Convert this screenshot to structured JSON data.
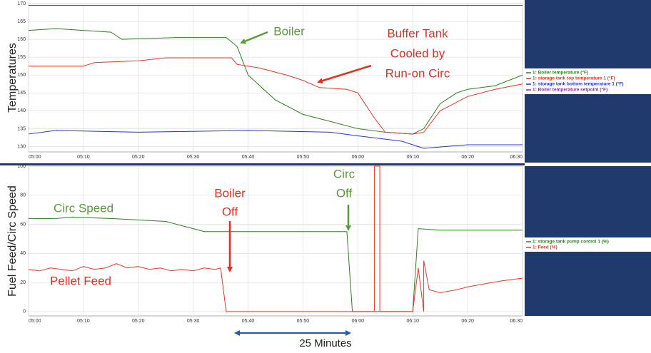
{
  "chart_data": [
    {
      "type": "line",
      "y_label": "Temperatures",
      "xlim": [
        "05:00",
        "06:30"
      ],
      "xticks": [
        "05:00",
        "05:10",
        "05:20",
        "05:30",
        "05:40",
        "05:50",
        "06:00",
        "06:10",
        "06:20",
        "06:30"
      ],
      "ylim": [
        128.5,
        170
      ],
      "yticks": [
        130,
        135,
        140,
        145,
        150,
        155,
        160,
        165,
        170
      ],
      "grid": true,
      "series": [
        {
          "name": "1: Boiler temperature (°F)",
          "color": "#2f7d22",
          "x": [
            "05:00",
            "05:05",
            "05:15",
            "05:17",
            "05:27",
            "05:36",
            "05:38",
            "05:40",
            "05:45",
            "05:50",
            "05:55",
            "06:00",
            "06:05",
            "06:10",
            "06:12",
            "06:15",
            "06:18",
            "06:20",
            "06:25",
            "06:30"
          ],
          "values": [
            162.5,
            163,
            162,
            160,
            160.5,
            160.5,
            158,
            150,
            143,
            139,
            137,
            135,
            134,
            133.5,
            135,
            142,
            145,
            146,
            147,
            150
          ]
        },
        {
          "name": "1: storage tank top temperature 1 (°F)",
          "color": "#ee3322",
          "x": [
            "05:00",
            "05:10",
            "05:12",
            "05:20",
            "05:25",
            "05:37",
            "05:38",
            "05:42",
            "05:47",
            "05:50",
            "05:53",
            "05:58",
            "06:00",
            "06:03",
            "06:05",
            "06:10",
            "06:12",
            "06:15",
            "06:20",
            "06:25",
            "06:30"
          ],
          "values": [
            152.5,
            152.5,
            153.5,
            154,
            154.8,
            154.8,
            153,
            152,
            150,
            148.5,
            146.5,
            146,
            145,
            138,
            134,
            133.5,
            134,
            140,
            144,
            146,
            147.5
          ]
        },
        {
          "name": "1: storage tank bottom temperature 1 (°F)",
          "color": "#2233dd",
          "x": [
            "05:00",
            "05:05",
            "05:20",
            "05:40",
            "05:55",
            "06:00",
            "06:08",
            "06:12",
            "06:20",
            "06:30"
          ],
          "values": [
            133.5,
            134.5,
            134,
            134.5,
            134,
            133,
            131.5,
            129.5,
            130.5,
            130.5
          ]
        },
        {
          "name": "1: Boiler temperature setpoint (°F)",
          "color": "#8a2a9a",
          "x": [
            "05:00",
            "06:30"
          ],
          "values": [
            169.5,
            169.5
          ]
        }
      ],
      "annotations": [
        {
          "lines": [
            "Boiler"
          ],
          "color": "#5a9a3a"
        },
        {
          "lines": [
            "Buffer Tank",
            "Cooled by",
            "Run-on Circ"
          ],
          "color": "#e03020"
        }
      ]
    },
    {
      "type": "line",
      "y_label": "Fuel Feed/Circ Speed",
      "xlim": [
        "05:00",
        "06:30"
      ],
      "xticks": [
        "05:00",
        "05:10",
        "05:20",
        "05:30",
        "05:40",
        "05:50",
        "06:00",
        "06:10",
        "06:20",
        "06:30"
      ],
      "ylim": [
        -3,
        100
      ],
      "yticks": [
        0,
        20,
        40,
        60,
        80,
        100
      ],
      "grid": true,
      "series": [
        {
          "name": "1: storage tank pump control 1 (%)",
          "color": "#2f7d22",
          "x": [
            "05:00",
            "05:05",
            "05:08",
            "05:15",
            "05:25",
            "05:27",
            "05:30",
            "05:32",
            "05:58",
            "05:59",
            "06:10",
            "06:11",
            "06:15",
            "06:30"
          ],
          "values": [
            64,
            64,
            65,
            64,
            62,
            60,
            57,
            55,
            55,
            0,
            0,
            57,
            56,
            56
          ]
        },
        {
          "name": "1: Feed (%)",
          "color": "#ee3322",
          "x": [
            "05:00",
            "05:02",
            "05:04",
            "05:06",
            "05:08",
            "05:10",
            "05:12",
            "05:14",
            "05:16",
            "05:18",
            "05:20",
            "05:22",
            "05:24",
            "05:26",
            "05:28",
            "05:30",
            "05:32",
            "05:34",
            "05:35",
            "05:36",
            "06:03",
            "06:03",
            "06:04",
            "06:04",
            "06:10",
            "06:11",
            "06:12",
            "06:12",
            "06:13",
            "06:15",
            "06:18",
            "06:20",
            "06:23",
            "06:26",
            "06:30"
          ],
          "values": [
            29,
            28,
            30,
            29,
            28,
            31,
            29,
            30,
            33,
            30,
            31,
            29,
            30,
            28,
            29,
            28,
            30,
            29,
            30,
            0,
            0,
            100,
            100,
            0,
            0,
            30,
            0,
            35,
            15,
            13,
            15,
            17,
            19,
            21,
            23
          ]
        }
      ],
      "annotations": [
        {
          "lines": [
            "Circ Speed"
          ],
          "color": "#5a9a3a"
        },
        {
          "lines": [
            "Boiler",
            "Off"
          ],
          "color": "#e03020"
        },
        {
          "lines": [
            "Circ",
            "Off"
          ],
          "color": "#5a9a3a"
        },
        {
          "lines": [
            "Pellet Feed"
          ],
          "color": "#e03020"
        }
      ]
    }
  ],
  "footer": "25 Minutes"
}
